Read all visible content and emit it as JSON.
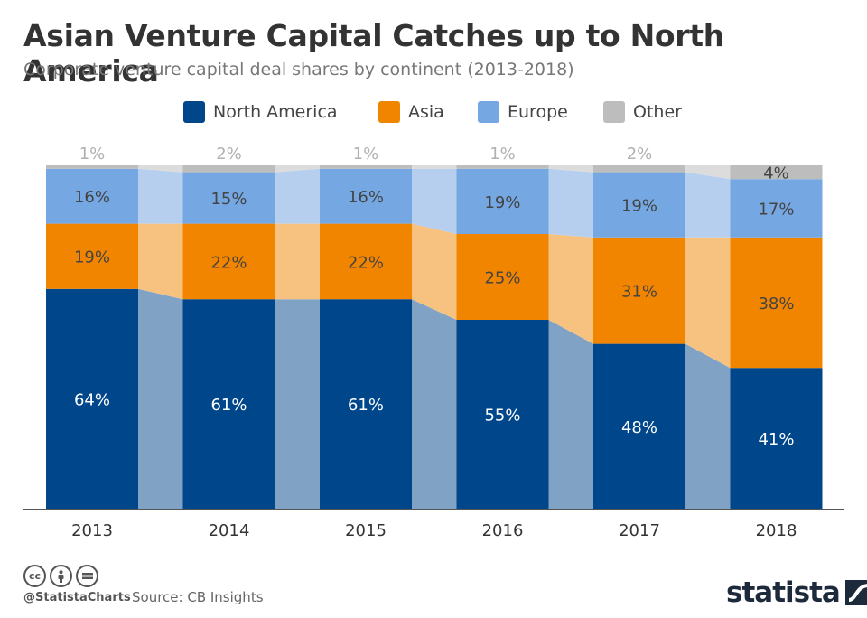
{
  "header": {
    "title": "Asian Venture Capital Catches up to North America",
    "subtitle": "Corporate venture capital deal shares by continent (2013-2018)"
  },
  "footer": {
    "handle": "@StatistaCharts",
    "source": "Source: CB Insights",
    "brand": "statista",
    "license_icons": [
      "cc-icon",
      "attribution-icon",
      "no-derivatives-icon"
    ]
  },
  "colors": {
    "North America": "#00468b",
    "Asia": "#f28500",
    "Europe": "#75a7e3",
    "Other": "#bdbdbd"
  },
  "fill_colors": {
    "North America": "#7fa2c5",
    "Asia": "#f7c27f",
    "Europe": "#b6cfef",
    "Other": "#dcdcdc"
  },
  "chart_data": {
    "type": "bar",
    "stacked": true,
    "categories": [
      "2013",
      "2014",
      "2015",
      "2016",
      "2017",
      "2018"
    ],
    "series": [
      {
        "name": "North America",
        "values": [
          64,
          61,
          61,
          55,
          48,
          41
        ]
      },
      {
        "name": "Asia",
        "values": [
          19,
          22,
          22,
          25,
          31,
          38
        ]
      },
      {
        "name": "Europe",
        "values": [
          16,
          15,
          16,
          19,
          19,
          17
        ]
      },
      {
        "name": "Other",
        "values": [
          1,
          2,
          1,
          1,
          2,
          4
        ]
      }
    ],
    "unit": "%",
    "ylim": [
      0,
      100
    ],
    "legend_position": "top",
    "grid": false
  }
}
